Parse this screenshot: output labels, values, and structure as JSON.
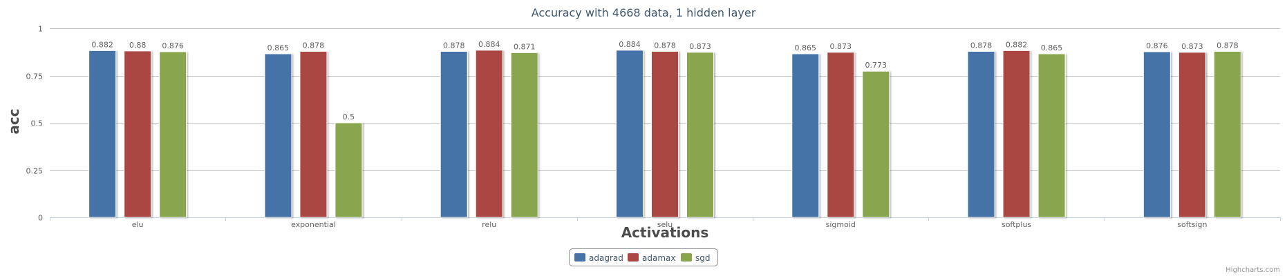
{
  "chart_data": {
    "type": "bar",
    "title": "Accuracy with 4668 data, 1 hidden layer",
    "xlabel": "Activations",
    "ylabel": "acc",
    "ylim": [
      0,
      1
    ],
    "yticks": [
      "0",
      "0.25",
      "0.5",
      "0.75",
      "1"
    ],
    "ytick_values": [
      0,
      0.25,
      0.5,
      0.75,
      1
    ],
    "grid": true,
    "legend_position": "bottom-center",
    "categories": [
      "elu",
      "exponential",
      "relu",
      "selu",
      "sigmoid",
      "softplus",
      "softsign"
    ],
    "series": [
      {
        "name": "adagrad",
        "color": "#4572A7",
        "values": [
          0.882,
          0.865,
          0.878,
          0.884,
          0.865,
          0.878,
          0.876
        ],
        "labels": [
          "0.882",
          "0.865",
          "0.878",
          "0.884",
          "0.865",
          "0.878",
          "0.876"
        ]
      },
      {
        "name": "adamax",
        "color": "#AA4643",
        "values": [
          0.88,
          0.878,
          0.884,
          0.878,
          0.873,
          0.882,
          0.873
        ],
        "labels": [
          "0.88",
          "0.878",
          "0.884",
          "0.878",
          "0.873",
          "0.882",
          "0.873"
        ]
      },
      {
        "name": "sgd",
        "color": "#89A54E",
        "values": [
          0.876,
          0.5,
          0.871,
          0.873,
          0.773,
          0.865,
          0.878
        ],
        "labels": [
          "0.876",
          "0.5",
          "0.871",
          "0.873",
          "0.773",
          "0.865",
          "0.878"
        ]
      }
    ]
  },
  "credits": "Highcharts.com"
}
